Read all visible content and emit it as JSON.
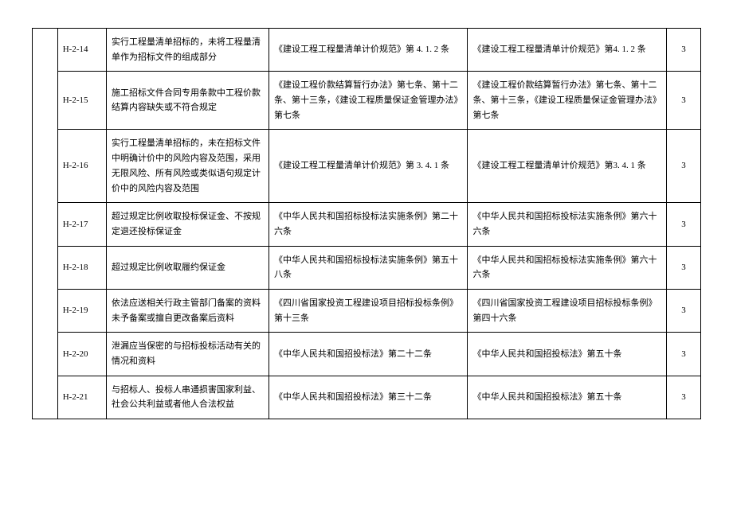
{
  "table": {
    "rows": [
      {
        "code": "H-2-14",
        "desc": "实行工程量清单招标的，未将工程量清单作为招标文件的组成部分",
        "ref1": "《建设工程工程量清单计价规范》第 4. 1. 2 条",
        "ref2": "《建设工程工程量清单计价规范》第4. 1. 2 条",
        "score": "3"
      },
      {
        "code": "H-2-15",
        "desc": "施工招标文件合同专用条款中工程价款结算内容缺失或不符合规定",
        "ref1": "《建设工程价款结算暂行办法》第七条、第十二条、第十三条，《建设工程质量保证金管理办法》第七条",
        "ref2": "《建设工程价款结算暂行办法》第七条、第十二条、第十三条，《建设工程质量保证金管理办法》第七条",
        "score": "3"
      },
      {
        "code": "H-2-16",
        "desc": "实行工程量清单招标的，未在招标文件中明确计价中的风险内容及范围，采用无限风险、所有风险或类似语句规定计价中的风险内容及范围",
        "ref1": "《建设工程工程量清单计价规范》第 3. 4. 1 条",
        "ref2": "《建设工程工程量清单计价规范》第3. 4. 1 条",
        "score": "3"
      },
      {
        "code": "H-2-17",
        "desc": "超过规定比例收取投标保证金、不按规定退还投标保证金",
        "ref1": "《中华人民共和国招标投标法实施条例》第二十六条",
        "ref2": "《中华人民共和国招标投标法实施条例》第六十六条",
        "score": "3"
      },
      {
        "code": "H-2-18",
        "desc": "超过规定比例收取履约保证金",
        "ref1": "《中华人民共和国招标投标法实施条例》第五十八条",
        "ref2": "《中华人民共和国招标投标法实施条例》第六十六条",
        "score": "3"
      },
      {
        "code": "H-2-19",
        "desc": "依法应送相关行政主管部门备案的资料未予备案或擅自更改备案后资料",
        "ref1": "《四川省国家投资工程建设项目招标投标条例》第十三条",
        "ref2": "《四川省国家投资工程建设项目招标投标条例》第四十六条",
        "score": "3"
      },
      {
        "code": "H-2-20",
        "desc": "泄漏应当保密的与招标投标活动有关的情况和资料",
        "ref1": "《中华人民共和国招投标法》第二十二条",
        "ref2": "《中华人民共和国招投标法》第五十条",
        "score": "3"
      },
      {
        "code": "H-2-21",
        "desc": "与招标人、投标人串通损害国家利益、社会公共利益或者他人合法权益",
        "ref1": "《中华人民共和国招投标法》第三十二条",
        "ref2": "《中华人民共和国招投标法》第五十条",
        "score": "3"
      }
    ]
  }
}
